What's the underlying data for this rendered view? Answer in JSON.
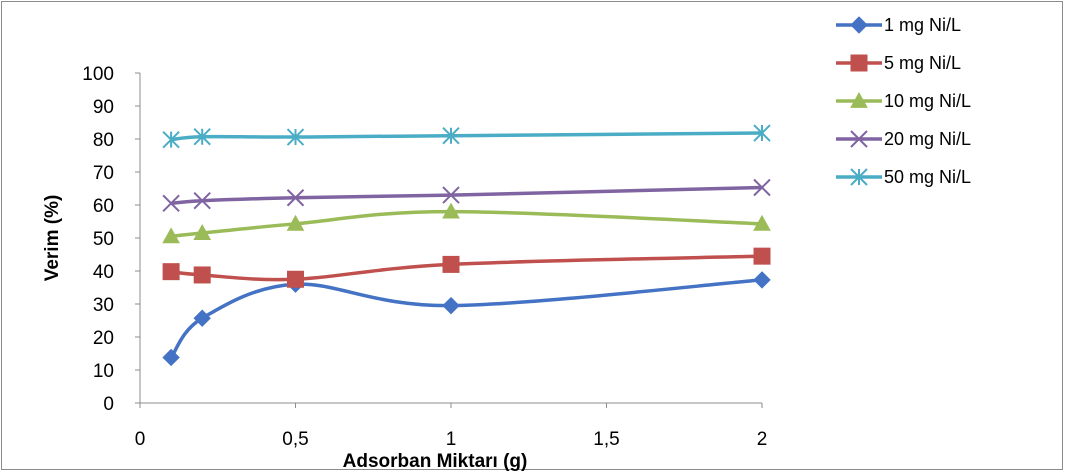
{
  "chart_data": {
    "type": "line",
    "title": "",
    "xlabel": "Adsorban Miktarı (g)",
    "ylabel": "Verim (%)",
    "xlim": [
      0,
      2
    ],
    "ylim": [
      0,
      100
    ],
    "xticks": [
      0,
      0.5,
      1,
      1.5,
      2
    ],
    "xtick_labels": [
      "0",
      "0,5",
      "1",
      "1,5",
      "2"
    ],
    "yticks": [
      0,
      10,
      20,
      30,
      40,
      50,
      60,
      70,
      80,
      90,
      100
    ],
    "ytick_labels": [
      "0",
      "10",
      "20",
      "30",
      "40",
      "50",
      "60",
      "70",
      "80",
      "90",
      "100"
    ],
    "grid": false,
    "legend_position": "right",
    "x": [
      0.1,
      0.2,
      0.5,
      1,
      2
    ],
    "series": [
      {
        "name": "1 mg Ni/L",
        "color": "#4472C4",
        "marker": "diamond",
        "values": [
          13.8,
          25.7,
          36.0,
          29.5,
          37.3
        ]
      },
      {
        "name": "5 mg Ni/L",
        "color": "#C0504D",
        "marker": "square",
        "values": [
          39.8,
          38.8,
          37.5,
          42.0,
          44.5
        ]
      },
      {
        "name": "10 mg Ni/L",
        "color": "#9BBB59",
        "marker": "triangle",
        "values": [
          50.5,
          51.5,
          54.3,
          58.0,
          54.3
        ]
      },
      {
        "name": "20 mg Ni/L",
        "color": "#8064A2",
        "marker": "x",
        "values": [
          60.5,
          61.3,
          62.2,
          63.0,
          65.3
        ]
      },
      {
        "name": "50 mg Ni/L",
        "color": "#4BACC6",
        "marker": "star",
        "values": [
          79.8,
          80.7,
          80.6,
          81.0,
          81.8
        ]
      }
    ]
  }
}
